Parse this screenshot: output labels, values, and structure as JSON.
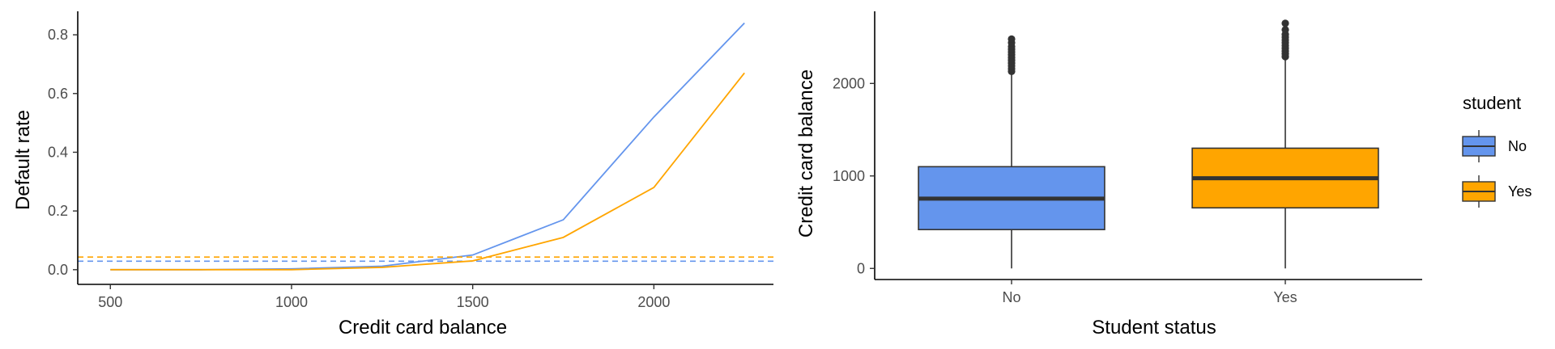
{
  "chart_data": [
    {
      "type": "line",
      "title": "",
      "xlabel": "Credit card balance",
      "ylabel": "Default rate",
      "xlim": [
        410,
        2330
      ],
      "ylim": [
        -0.05,
        0.88
      ],
      "x_ticks": [
        500,
        1000,
        1500,
        2000
      ],
      "y_ticks": [
        0.0,
        0.2,
        0.4,
        0.6,
        0.8
      ],
      "y_tick_labels": [
        "0.0",
        "0.2",
        "0.4",
        "0.6",
        "0.8"
      ],
      "grid": false,
      "x": [
        500,
        750,
        1000,
        1250,
        1500,
        1750,
        2000,
        2250
      ],
      "series": [
        {
          "group": "No",
          "color": "#6495ED",
          "values": [
            0.0,
            0.0,
            0.003,
            0.012,
            0.05,
            0.17,
            0.52,
            0.84
          ],
          "overall_rate": 0.029
        },
        {
          "group": "Yes",
          "color": "#FFA500",
          "values": [
            0.0,
            0.0,
            0.0,
            0.008,
            0.03,
            0.11,
            0.28,
            0.67
          ],
          "overall_rate": 0.043
        }
      ],
      "reference_lines": "dashed horizontal lines at each group's overall default rate"
    },
    {
      "type": "box",
      "title": "",
      "xlabel": "Student status",
      "ylabel": "Credit card balance",
      "categories": [
        "No",
        "Yes"
      ],
      "ylim": [
        -120,
        2780
      ],
      "y_ticks": [
        0,
        1000,
        2000
      ],
      "grid": false,
      "boxes": [
        {
          "category": "No",
          "color": "#6495ED",
          "whisker_low": 0,
          "q1": 420,
          "median": 755,
          "q3": 1100,
          "whisker_high": 2110,
          "outliers": [
            2130,
            2160,
            2190,
            2220,
            2250,
            2280,
            2310,
            2340,
            2370,
            2400,
            2440,
            2480
          ]
        },
        {
          "category": "Yes",
          "color": "#FFA500",
          "whisker_low": 0,
          "q1": 655,
          "median": 975,
          "q3": 1300,
          "whisker_high": 2270,
          "outliers": [
            2290,
            2320,
            2350,
            2380,
            2410,
            2440,
            2470,
            2500,
            2530,
            2580,
            2650
          ]
        }
      ]
    }
  ],
  "legend": {
    "title": "student",
    "entries": [
      {
        "label": "No",
        "color": "#6495ED"
      },
      {
        "label": "Yes",
        "color": "#FFA500"
      }
    ],
    "position": "right"
  }
}
